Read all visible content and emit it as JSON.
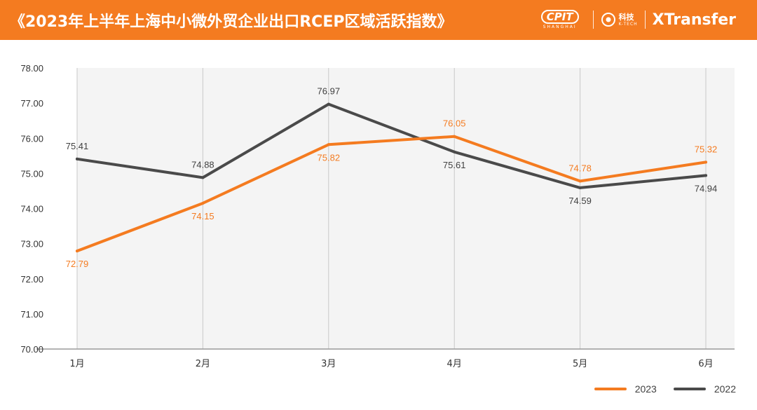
{
  "header": {
    "title": "《2023年上半年上海中小微外贸企业出口RCEP区域活跃指数》",
    "logos": {
      "cpit_main": "CPIT",
      "cpit_sub": "SHANGHAI",
      "ktech_main": "科技",
      "ktech_sub": "K-TECH",
      "xtransfer": "XTransfer"
    }
  },
  "colors": {
    "header_bg": "#f47b20",
    "series_2023": "#f47b20",
    "series_2022": "#4a4a4a",
    "plot_bg": "#f4f4f4",
    "grid": "#c8c8c8"
  },
  "chart_data": {
    "type": "line",
    "title": "《2023年上半年上海中小微外贸企业出口RCEP区域活跃指数》",
    "categories": [
      "1月",
      "2月",
      "3月",
      "4月",
      "5月",
      "6月"
    ],
    "series": [
      {
        "name": "2023",
        "values": [
          72.79,
          74.15,
          75.82,
          76.05,
          74.78,
          75.32
        ]
      },
      {
        "name": "2022",
        "values": [
          75.41,
          74.88,
          76.97,
          75.61,
          74.59,
          74.94
        ]
      }
    ],
    "ylim": [
      70,
      78
    ],
    "yticks": [
      "70.00",
      "71.00",
      "72.00",
      "73.00",
      "74.00",
      "75.00",
      "76.00",
      "77.00",
      "78.00"
    ],
    "xlabel": "",
    "ylabel": "",
    "grid": "vertical",
    "legend": "bottom-right"
  }
}
